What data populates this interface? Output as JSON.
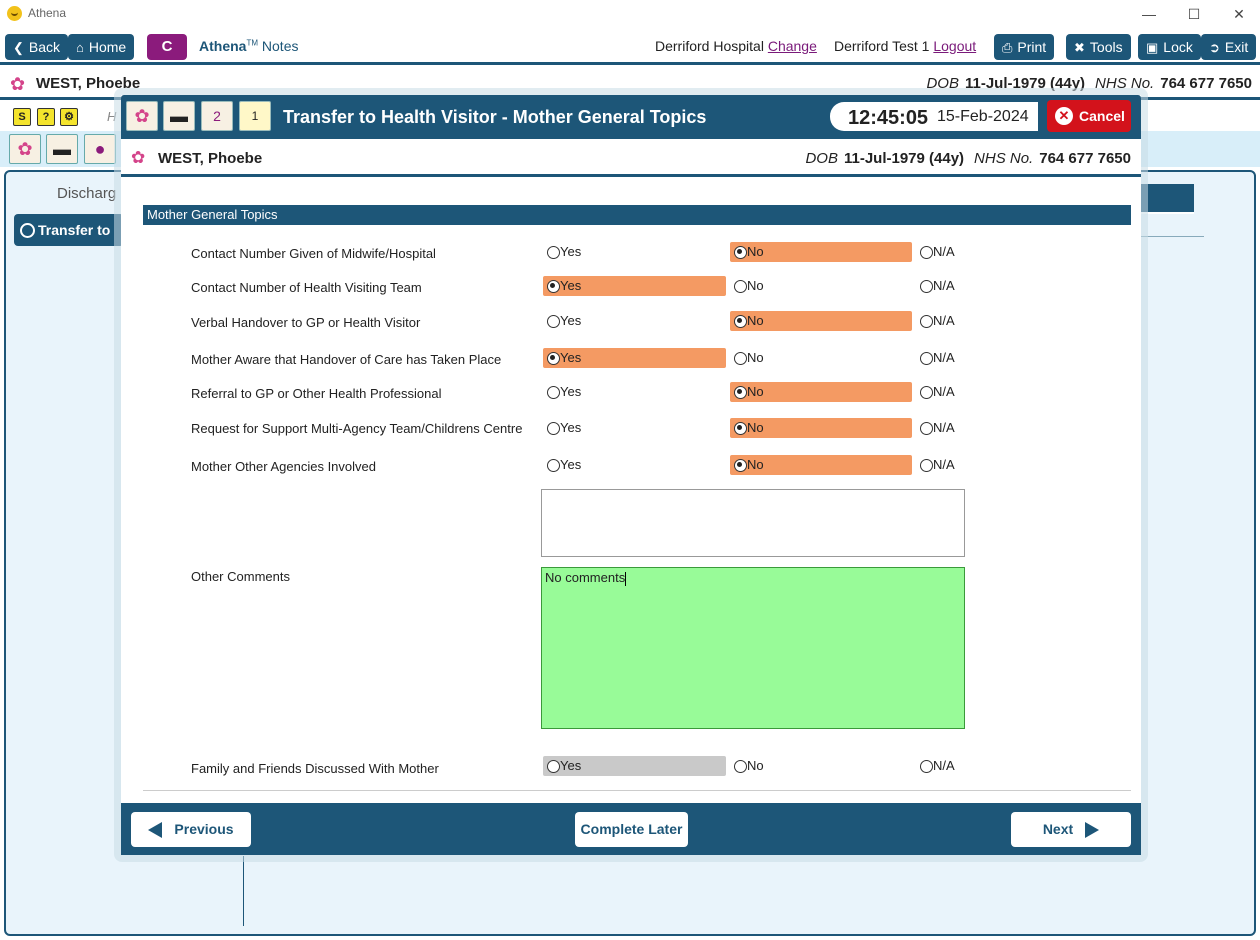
{
  "window": {
    "title": "Athena"
  },
  "toolbar": {
    "back": "Back",
    "home": "Home",
    "c_button": "C",
    "app_name": "Athena",
    "app_tm": "TM",
    "app_sub": "Notes",
    "hospital": "Derriford Hospital",
    "change": "Change",
    "user": "Derriford Test 1",
    "logout": "Logout",
    "print": "Print",
    "tools": "Tools",
    "lock": "Lock",
    "exit": "Exit"
  },
  "patient": {
    "name": "WEST, Phoebe",
    "dob_label": "DOB",
    "dob": "11-Jul-1979 (44y)",
    "nhs_label": "NHS No.",
    "nhs": "764 677 7650"
  },
  "background": {
    "discharge": "Discharg",
    "transfer": "Transfer to",
    "h_partial": "H"
  },
  "dialog": {
    "title": "Transfer to Health Visitor - Mother General Topics",
    "time": "12:45:05",
    "date": "15-Feb-2024",
    "cancel": "Cancel",
    "badge_count": "2",
    "calendar_num": "1",
    "section": "Mother General Topics",
    "option_labels": {
      "yes": "Yes",
      "no": "No",
      "na": "N/A"
    },
    "questions": [
      {
        "label": "Contact Number Given of Midwife/Hospital",
        "selected": "no"
      },
      {
        "label": "Contact Number of Health Visiting Team",
        "selected": "yes"
      },
      {
        "label": "Verbal Handover to GP or Health Visitor",
        "selected": "no"
      },
      {
        "label": "Mother Aware that Handover of Care has Taken Place",
        "selected": "yes"
      },
      {
        "label": "Referral to GP or Other Health Professional",
        "selected": "no"
      },
      {
        "label": "Request for Support Multi-Agency Team/Childrens Centre",
        "selected": "no"
      },
      {
        "label": "Mother Other Agencies Involved",
        "selected": "no"
      }
    ],
    "other_comments_label": "Other Comments",
    "other_comments_value": "No comments",
    "family_label": "Family and Friends Discussed With Mother",
    "family_selected": "none",
    "prev": "Previous",
    "complete_later": "Complete Later",
    "next": "Next"
  },
  "colors": {
    "primary": "#1d5678",
    "selected": "#f49a63",
    "cancel": "#d3121b",
    "comment_bg": "#98fb98",
    "c_button": "#8b1b7c"
  }
}
